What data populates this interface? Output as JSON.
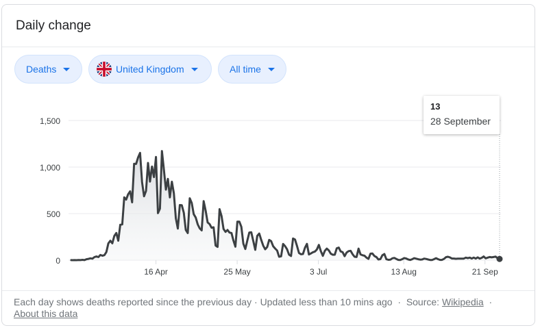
{
  "header": {
    "title": "Daily change"
  },
  "filters": {
    "metric": "Deaths",
    "region": "United Kingdom",
    "range": "All time"
  },
  "tooltip": {
    "value": "13",
    "date": "28 September"
  },
  "footer": {
    "note": "Each day shows deaths reported since the previous day",
    "updated": "Updated less than 10 mins ago",
    "source_label": "Source:",
    "source_link": "Wikipedia",
    "about_link": "About this data",
    "sep": "·"
  },
  "colors": {
    "line": "#3c4043",
    "accent": "#1a73e8",
    "chip_bg": "#e8f0fe"
  },
  "chart_data": {
    "type": "area",
    "title": "",
    "xlabel": "",
    "ylabel": "",
    "ylim": [
      0,
      1500
    ],
    "yticks": [
      0,
      500,
      1000,
      1500
    ],
    "ytick_labels": [
      "0",
      "500",
      "1,000",
      "1,500"
    ],
    "xtick_labels": [
      "16 Apr",
      "25 May",
      "3 Jul",
      "13 Aug",
      "21 Sep"
    ],
    "xtick_dates": [
      "2020-04-16",
      "2020-05-25",
      "2020-07-03",
      "2020-08-13",
      "2020-09-21"
    ],
    "grid": true,
    "start_date": "2020-03-06",
    "end_date": "2020-09-28",
    "values": [
      1,
      0,
      1,
      0,
      2,
      1,
      4,
      1,
      10,
      14,
      20,
      16,
      33,
      40,
      33,
      56,
      48,
      54,
      87,
      180,
      209,
      181,
      260,
      292,
      209,
      381,
      384,
      674,
      651,
      708,
      739,
      621,
      1035,
      1034,
      1103,
      1152,
      839,
      686,
      744,
      1044,
      844,
      1006,
      892,
      1108,
      505,
      553,
      1172,
      969,
      757,
      873,
      674,
      843,
      720,
      449,
      339,
      592,
      590,
      510,
      325,
      291,
      665,
      614,
      494,
      458,
      385,
      342,
      320,
      634,
      531,
      405,
      387,
      348,
      353,
      157,
      143,
      548,
      474,
      335,
      304,
      324,
      296,
      292,
      212,
      145,
      414,
      413,
      358,
      178,
      120,
      211,
      297,
      299,
      206,
      111,
      261,
      286,
      218,
      156,
      117,
      141,
      218,
      204,
      150,
      125,
      104,
      37,
      41,
      174,
      151,
      117,
      59,
      45,
      232,
      222,
      153,
      77,
      63,
      66,
      133,
      175,
      61,
      72,
      85,
      93,
      115,
      164,
      97,
      46,
      100,
      124,
      105,
      70,
      58,
      59,
      127,
      135,
      94,
      86,
      43,
      82,
      97,
      101,
      64,
      37,
      34,
      124,
      62,
      53,
      48,
      27,
      14,
      70,
      71,
      45,
      33,
      7,
      12,
      53,
      66,
      10,
      4,
      5,
      20,
      24,
      13,
      3,
      2,
      11,
      23,
      18,
      7,
      2,
      10,
      21,
      16,
      10,
      6,
      7,
      17,
      13,
      7,
      2,
      2,
      11,
      21,
      11,
      3,
      3,
      14,
      32,
      37,
      30,
      18,
      18,
      15,
      16,
      16,
      17,
      17,
      27,
      22,
      27,
      18,
      28,
      17,
      30,
      17,
      25,
      40,
      20,
      27,
      34,
      30,
      34,
      38,
      20,
      13
    ]
  }
}
